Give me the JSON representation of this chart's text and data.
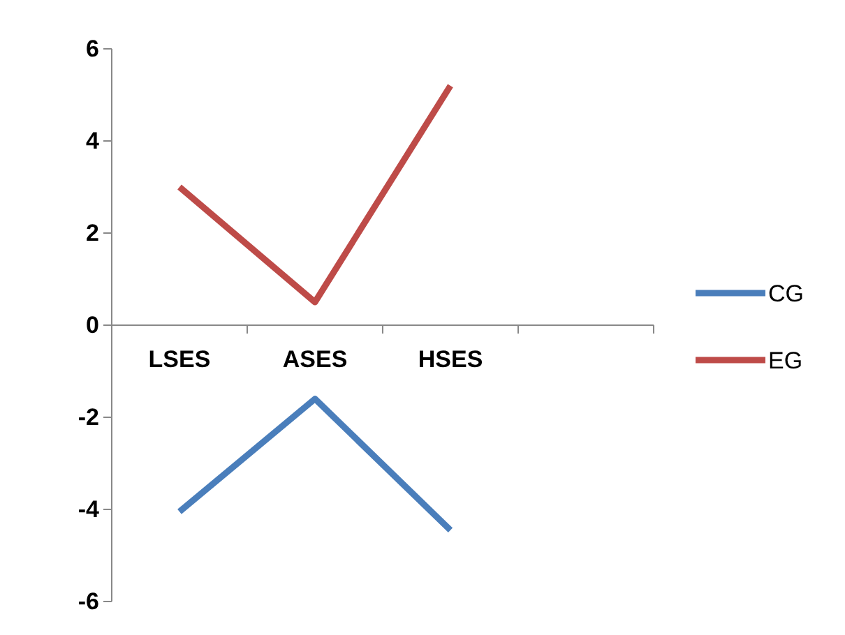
{
  "chart_data": {
    "type": "line",
    "categories": [
      "LSES",
      "ASES",
      "HSES",
      null
    ],
    "series": [
      {
        "name": "CG",
        "color": "#4a7ebb",
        "values": [
          -4.05,
          -1.6,
          -4.45,
          null
        ]
      },
      {
        "name": "EG",
        "color": "#be4b48",
        "values": [
          3,
          0.5,
          5.2,
          null
        ]
      }
    ],
    "ylim": [
      -6,
      6
    ],
    "yticks": [
      -6,
      -4,
      -2,
      0,
      2,
      4,
      6
    ],
    "legend": "right",
    "marker": "none",
    "line_style": "solid"
  }
}
